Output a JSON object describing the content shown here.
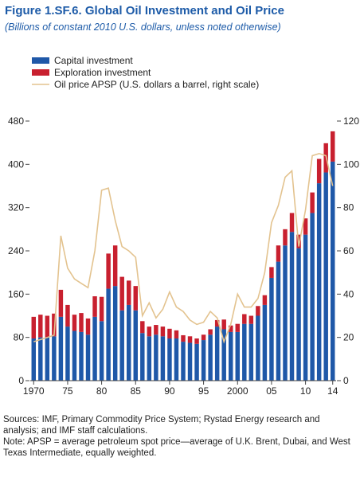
{
  "chart_data": {
    "type": "bar",
    "title": "Figure 1.SF.6.  Global Oil Investment and Oil Price",
    "subtitle": "(Billions of constant 2010 U.S. dollars, unless noted otherwise)",
    "x": [
      1970,
      1971,
      1972,
      1973,
      1974,
      1975,
      1976,
      1977,
      1978,
      1979,
      1980,
      1981,
      1982,
      1983,
      1984,
      1985,
      1986,
      1987,
      1988,
      1989,
      1990,
      1991,
      1992,
      1993,
      1994,
      1995,
      1996,
      1997,
      1998,
      1999,
      2000,
      2001,
      2002,
      2003,
      2004,
      2005,
      2006,
      2007,
      2008,
      2009,
      2010,
      2011,
      2012,
      2013,
      2014
    ],
    "xlim": [
      1969.5,
      2014.5
    ],
    "xticks": [
      1970,
      {
        "value": 1975,
        "label": "75"
      },
      {
        "value": 1980,
        "label": "80"
      },
      {
        "value": 1985,
        "label": "85"
      },
      {
        "value": 1990,
        "label": "90"
      },
      {
        "value": 1995,
        "label": "95"
      },
      2000,
      {
        "value": 2005,
        "label": "05"
      },
      {
        "value": 2010,
        "label": "10"
      },
      {
        "value": 2014,
        "label": "14"
      }
    ],
    "ylim": [
      0,
      480
    ],
    "yticks": [
      0,
      80,
      160,
      240,
      320,
      400,
      480
    ],
    "y2lim": [
      0,
      120
    ],
    "y2ticks": [
      0,
      20,
      40,
      60,
      80,
      100,
      120
    ],
    "stacked": true,
    "series": [
      {
        "name": "Capital investment",
        "color": "#1f58a8",
        "values": [
          78,
          80,
          80,
          82,
          118,
          100,
          92,
          90,
          85,
          118,
          110,
          170,
          175,
          130,
          140,
          130,
          88,
          82,
          85,
          82,
          78,
          78,
          72,
          70,
          68,
          75,
          85,
          100,
          95,
          90,
          90,
          105,
          105,
          120,
          140,
          190,
          220,
          250,
          275,
          245,
          270,
          310,
          365,
          385,
          405
        ]
      },
      {
        "name": "Exploration investment",
        "color": "#c8202f",
        "values": [
          40,
          42,
          40,
          42,
          50,
          40,
          30,
          35,
          30,
          38,
          45,
          65,
          75,
          62,
          45,
          45,
          22,
          18,
          18,
          18,
          18,
          15,
          12,
          12,
          10,
          10,
          10,
          12,
          18,
          12,
          15,
          18,
          15,
          18,
          18,
          20,
          30,
          30,
          35,
          25,
          30,
          38,
          45,
          54,
          56
        ]
      },
      {
        "name": "Oil price APSP (U.S. dollars a barrel, right scale)",
        "color": "#e3c38f",
        "type": "line",
        "axis": "y2",
        "values": [
          18,
          19,
          20,
          21,
          67,
          52,
          47,
          45,
          43,
          60,
          88,
          89,
          74,
          62,
          60,
          57,
          30,
          36,
          29,
          33,
          41,
          34,
          32,
          28,
          26,
          27,
          32,
          29,
          18,
          26,
          40,
          34,
          34,
          38,
          50,
          73,
          81,
          94,
          97,
          62,
          79,
          104,
          105,
          104,
          90
        ]
      }
    ],
    "notes": [
      "Sources: IMF, Primary Commodity Price System; Rystad Energy research and analysis; and IMF staff calculations.",
      "Note: APSP = average petroleum spot price—average of U.K. Brent, Dubai, and West Texas Intermediate, equally weighted."
    ]
  }
}
